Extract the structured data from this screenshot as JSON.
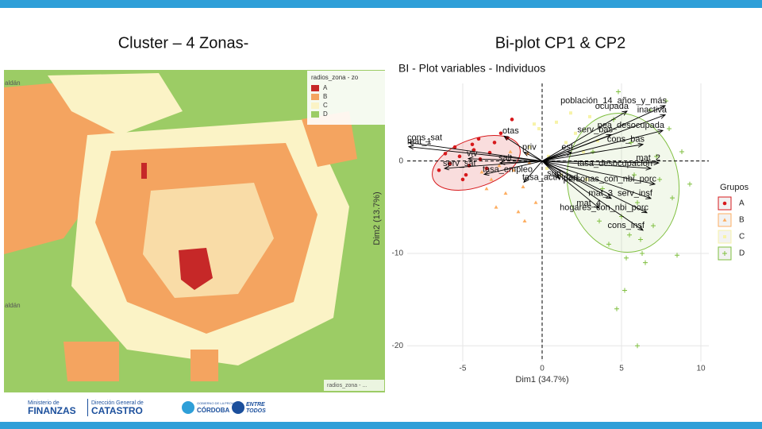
{
  "slide": {
    "left_heading": "Cluster – 4 Zonas-",
    "right_heading": "Bi-plot CP1 & CP2"
  },
  "map": {
    "legend_title": "radios_zona - zo",
    "legend": [
      {
        "name": "A",
        "color": "#c62828"
      },
      {
        "name": "B",
        "color": "#f4a460"
      },
      {
        "name": "C",
        "color": "#fbf3c6"
      },
      {
        "name": "D",
        "color": "#9ccc65"
      }
    ],
    "corner_label": "radios_zona - ...",
    "place_labels": [
      "aldán",
      "aldán"
    ]
  },
  "chart_data": {
    "type": "biplot",
    "title": "BI - Plot variables - Individuos",
    "x_label": "Dim1 (34.7%)",
    "y_label": "Dim2 (13.7%)",
    "xlim": [
      -8.5,
      10.5
    ],
    "ylim": [
      -21.7,
      8.4
    ],
    "xticks": [
      -5,
      0,
      5,
      10
    ],
    "yticks": [
      -20,
      -10,
      0
    ],
    "grid": true,
    "legend_title": "Grupos",
    "legend": "right",
    "series": [
      {
        "name": "A",
        "color": "#d7191c",
        "marker": "circle",
        "x": [
          -6.5,
          -5.8,
          -5.2,
          -4.8,
          -4.3,
          -3.9,
          -3.5,
          -3.0,
          -2.6,
          -6.1,
          -5.5,
          -4.6,
          -4.0,
          -3.3,
          -2.2,
          -1.9,
          -5.0,
          -4.4
        ],
        "values": [
          -1.0,
          -0.3,
          0.5,
          -1.5,
          1.2,
          0.2,
          -0.8,
          2.0,
          3.0,
          0.8,
          1.5,
          -0.5,
          2.4,
          0.9,
          2.5,
          4.5,
          -2.0,
          1.8
        ]
      },
      {
        "name": "B",
        "color": "#fdae61",
        "marker": "triangle",
        "x": [
          -3.8,
          -3.2,
          -2.7,
          -2.3,
          -1.8,
          -1.2,
          -0.8,
          -0.4,
          -2.9,
          -1.5,
          -2.0,
          -0.9,
          -3.5,
          -1.1
        ],
        "values": [
          -1.2,
          -2.0,
          -0.5,
          -3.5,
          -1.0,
          -2.8,
          -0.2,
          -4.5,
          -5.0,
          -5.5,
          1.0,
          0.8,
          -3.0,
          -6.5
        ]
      },
      {
        "name": "C",
        "color": "#f7f3a8",
        "marker": "square",
        "x": [
          -0.8,
          -0.2,
          0.4,
          0.9,
          1.5,
          2.1,
          2.6,
          3.0,
          1.2,
          0.3,
          1.8,
          2.8,
          -0.5,
          3.5
        ],
        "values": [
          1.5,
          3.5,
          0.5,
          4.2,
          2.0,
          3.0,
          1.0,
          4.8,
          -1.5,
          -0.8,
          5.2,
          -2.0,
          4.0,
          2.2
        ]
      },
      {
        "name": "D",
        "color": "#7fbf3f",
        "marker": "plus",
        "x": [
          3.2,
          3.8,
          4.5,
          5.0,
          5.6,
          6.2,
          6.8,
          7.4,
          8.0,
          8.8,
          4.2,
          5.3,
          6.0,
          7.0,
          7.8,
          4.8,
          5.8,
          6.5,
          8.5,
          6.3,
          5.2,
          4.7,
          6.0,
          8.2,
          9.3,
          3.6,
          7.2,
          5.5
        ],
        "values": [
          1.0,
          -3.0,
          4.5,
          -6.0,
          2.0,
          -8.5,
          5.5,
          -2.0,
          3.5,
          1.0,
          -9.0,
          -10.5,
          -4.5,
          -7.0,
          6.5,
          7.5,
          -1.5,
          -11.0,
          -10.2,
          -10.0,
          -14.0,
          -16.0,
          -20.0,
          -4.0,
          -2.5,
          -6.5,
          0.5,
          -8.0
        ]
      }
    ],
    "variables": [
      {
        "name": "población_14_años_y_más",
        "x": 7.75,
        "y": 6.0
      },
      {
        "name": "ocupada",
        "x": 5.35,
        "y": 5.4
      },
      {
        "name": "inactiva",
        "x": 7.75,
        "y": 5.0
      },
      {
        "name": "serv_bas",
        "x": 4.35,
        "y": 2.85
      },
      {
        "name": "pea_desocupada",
        "x": 7.6,
        "y": 3.3
      },
      {
        "name": "cons_bas",
        "x": 6.35,
        "y": 1.8
      },
      {
        "name": "est",
        "x": 1.85,
        "y": 0.95
      },
      {
        "name": "priv",
        "x": -1.15,
        "y": 0.95
      },
      {
        "name": "otas",
        "x": -2.4,
        "y": 2.7
      },
      {
        "name": "cons_sat",
        "x": -8.4,
        "y": 2.0
      },
      {
        "name": "mat_1",
        "x": -8.4,
        "y": 1.55
      },
      {
        "name": "serv_sat",
        "x": -6.15,
        "y": -0.8
      },
      {
        "name": "viv",
        "x": -4.65,
        "y": 0.25
      },
      {
        "name": "salt",
        "x": -2.65,
        "y": -0.2
      },
      {
        "name": "tasa_empleo",
        "x": -3.65,
        "y": -1.45
      },
      {
        "name": "tasa_actividad",
        "x": -1.15,
        "y": -2.3
      },
      {
        "name": "tasa_desocupacion",
        "x": 6.85,
        "y": -0.8
      },
      {
        "name": "mat_2",
        "x": 7.35,
        "y": -0.2
      },
      {
        "name": "personas_con_nbi_porc",
        "x": 7.1,
        "y": -2.5
      },
      {
        "name": "serv_insf",
        "x": 6.85,
        "y": -4.05
      },
      {
        "name": "sup",
        "x": 1.1,
        "y": -1.9
      },
      {
        "name": "mat_3",
        "x": 4.35,
        "y": -4.05
      },
      {
        "name": "hogares_con_nbi_porc",
        "x": 6.6,
        "y": -5.6
      },
      {
        "name": "mat_4",
        "x": 3.6,
        "y": -5.1
      },
      {
        "name": "cons_insf",
        "x": 6.35,
        "y": -7.5
      }
    ]
  },
  "footer": {
    "ministry_small": "Ministerio de",
    "ministry": "FINANZAS",
    "direction_small": "Dirección General de",
    "direction": "CATASTRO",
    "gov_small": "GOBIERNO DE LA PROVINCIA",
    "gov": "CÓRDOBA",
    "motto_1": "ENTRE",
    "motto_2": "TODOS"
  }
}
